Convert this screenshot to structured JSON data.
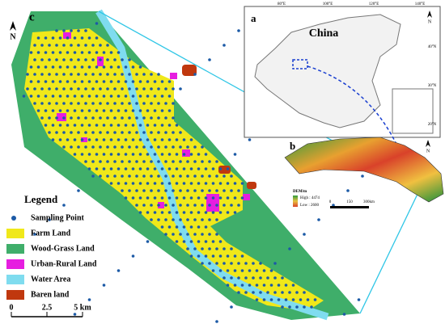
{
  "panels": {
    "c": {
      "label": "c",
      "north": "N"
    },
    "a": {
      "label": "a",
      "country": "China",
      "north": "N",
      "lon_ticks": [
        "80°E",
        "100°E",
        "120°E",
        "140°E"
      ],
      "lat_ticks": [
        "40°N",
        "30°N",
        "20°N"
      ]
    },
    "b": {
      "label": "b",
      "north": "N",
      "dem_title": "DEM/m",
      "high": "High : 4474",
      "low": "Low : 2600",
      "scale": [
        "0",
        "150",
        "300km"
      ]
    }
  },
  "legend": {
    "title": "Legend",
    "items": [
      {
        "label": "Sampling Point",
        "color": "#1c5aa6"
      },
      {
        "label": "Farm Land",
        "color": "#f0e81a"
      },
      {
        "label": "Wood-Grass Land",
        "color": "#3fae6a"
      },
      {
        "label": "Urban-Rural Land",
        "color": "#e61ee0"
      },
      {
        "label": "Water Area",
        "color": "#7fdcef"
      },
      {
        "label": "Baren land",
        "color": "#c0380e"
      }
    ]
  },
  "scale_bar": [
    "0",
    "2.5",
    "5 km"
  ]
}
